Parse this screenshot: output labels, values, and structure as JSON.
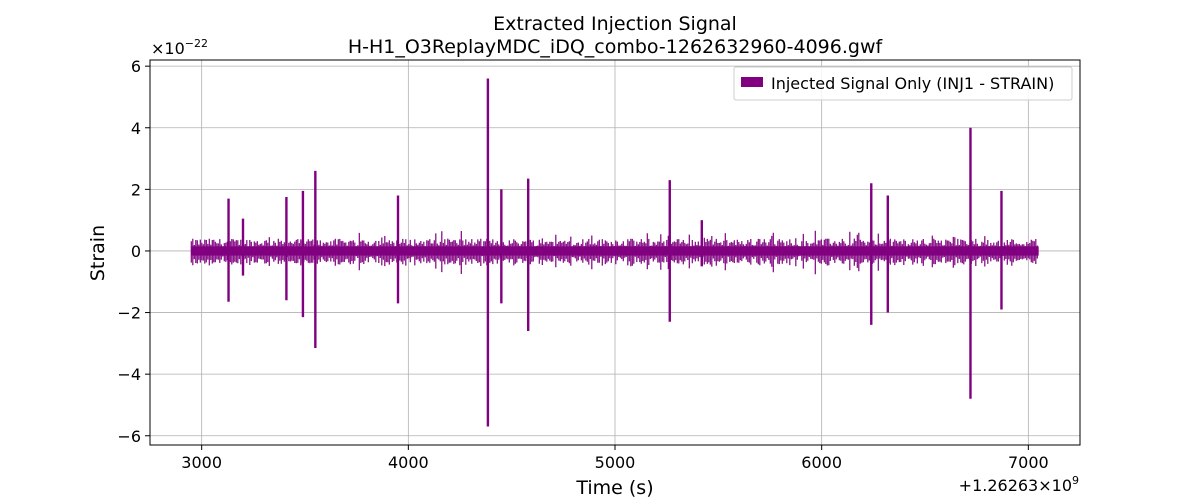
{
  "chart_data": {
    "type": "line",
    "title": "Extracted Injection Signal",
    "subtitle": "H-H1_O3ReplayMDC_iDQ_combo-1262632960-4096.gwf",
    "xlabel": "Time (s)",
    "ylabel": "Strain",
    "x_offset_label": "+1.26263×10",
    "x_offset_exponent": "9",
    "y_scale_label": "×10",
    "y_scale_exponent": "−22",
    "xlim": [
      2750,
      7250
    ],
    "ylim": [
      -6.3,
      6.2
    ],
    "x_ticks": [
      3000,
      4000,
      5000,
      6000,
      7000
    ],
    "x_tick_labels": [
      "3000",
      "4000",
      "5000",
      "6000",
      "7000"
    ],
    "y_ticks": [
      -6,
      -4,
      -2,
      0,
      2,
      4,
      6
    ],
    "y_tick_labels": [
      "−6",
      "−4",
      "−2",
      "0",
      "2",
      "4",
      "6"
    ],
    "grid": true,
    "legend_position": "top-right",
    "color": "#800080",
    "series": [
      {
        "name": "Injected Signal Only (INJ1 - STRAIN)",
        "x_range": [
          2950,
          7050
        ],
        "baseline_band": [
          -0.15,
          0.15
        ],
        "bursts": [
          {
            "t": 3130,
            "max": 1.7,
            "min": -1.65
          },
          {
            "t": 3200,
            "max": 1.05,
            "min": -0.8
          },
          {
            "t": 3410,
            "max": 1.75,
            "min": -1.6
          },
          {
            "t": 3490,
            "max": 1.95,
            "min": -2.15
          },
          {
            "t": 3550,
            "max": 2.6,
            "min": -3.15
          },
          {
            "t": 3950,
            "max": 1.8,
            "min": -1.7
          },
          {
            "t": 4385,
            "max": 5.6,
            "min": -5.7
          },
          {
            "t": 4450,
            "max": 2.0,
            "min": -1.7
          },
          {
            "t": 4580,
            "max": 2.35,
            "min": -2.6
          },
          {
            "t": 5265,
            "max": 2.3,
            "min": -2.3
          },
          {
            "t": 5420,
            "max": 1.0,
            "min": -0.5
          },
          {
            "t": 6240,
            "max": 2.2,
            "min": -2.4
          },
          {
            "t": 6320,
            "max": 1.8,
            "min": -2.0
          },
          {
            "t": 6720,
            "max": 4.0,
            "min": -4.8
          },
          {
            "t": 6870,
            "max": 1.95,
            "min": -1.9
          }
        ]
      }
    ]
  }
}
